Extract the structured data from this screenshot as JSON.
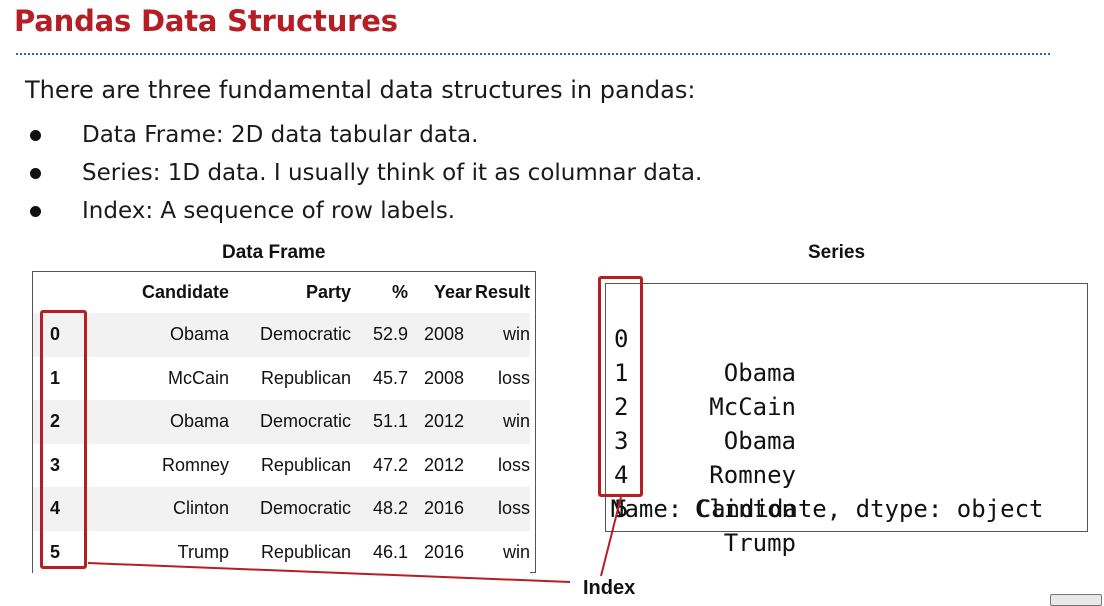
{
  "slide": {
    "title": "Pandas Data Structures",
    "intro": "There are three fundamental data structures in pandas:",
    "bullets": [
      "Data Frame: 2D data tabular data.",
      "Series: 1D data. I usually think of it as columnar data.",
      "Index: A sequence of row labels."
    ]
  },
  "dataframe": {
    "heading": "Data Frame",
    "columns": [
      "Candidate",
      "Party",
      "%",
      "Year",
      "Result"
    ],
    "rows": [
      {
        "index": "0",
        "cells": [
          "Obama",
          "Democratic",
          "52.9",
          "2008",
          "win"
        ]
      },
      {
        "index": "1",
        "cells": [
          "McCain",
          "Republican",
          "45.7",
          "2008",
          "loss"
        ]
      },
      {
        "index": "2",
        "cells": [
          "Obama",
          "Democratic",
          "51.1",
          "2012",
          "win"
        ]
      },
      {
        "index": "3",
        "cells": [
          "Romney",
          "Republican",
          "47.2",
          "2012",
          "loss"
        ]
      },
      {
        "index": "4",
        "cells": [
          "Clinton",
          "Democratic",
          "48.2",
          "2016",
          "loss"
        ]
      },
      {
        "index": "5",
        "cells": [
          "Trump",
          "Republican",
          "46.1",
          "2016",
          "win"
        ]
      }
    ]
  },
  "series": {
    "heading": "Series",
    "entries": [
      {
        "index": "0",
        "value": "Obama"
      },
      {
        "index": "1",
        "value": "McCain"
      },
      {
        "index": "2",
        "value": "Obama"
      },
      {
        "index": "3",
        "value": "Romney"
      },
      {
        "index": "4",
        "value": "Clinton"
      },
      {
        "index": "5",
        "value": "Trump"
      }
    ],
    "footer": "Name: Candidate, dtype: object"
  },
  "callout": {
    "label": "Index",
    "color": "#b51e24"
  },
  "colors": {
    "title": "#b51e24",
    "rule": "#2b6cb0",
    "highlight": "#b51e24",
    "stripe": "#f2f2f2"
  }
}
